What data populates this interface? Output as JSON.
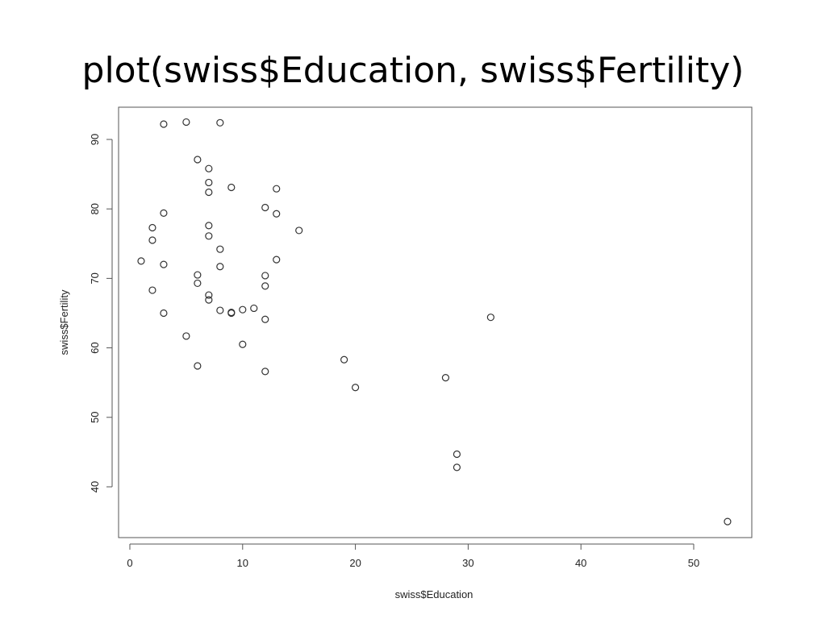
{
  "chart_data": {
    "type": "scatter",
    "title": "plot(swiss$Education, swiss$Fertility)",
    "x_label": "swiss$Education",
    "y_label": "swiss$Fertility",
    "x": [
      12,
      9,
      5,
      7,
      15,
      7,
      7,
      8,
      7,
      13,
      6,
      12,
      7,
      12,
      5,
      2,
      8,
      28,
      20,
      9,
      10,
      3,
      12,
      6,
      1,
      8,
      3,
      10,
      19,
      8,
      2,
      6,
      2,
      6,
      3,
      9,
      3,
      13,
      12,
      11,
      13,
      32,
      7,
      7,
      53,
      29,
      29
    ],
    "values": [
      80.2,
      83.1,
      92.5,
      85.8,
      76.9,
      76.1,
      83.8,
      92.4,
      82.4,
      82.9,
      87.1,
      64.1,
      66.9,
      68.9,
      61.7,
      68.3,
      71.7,
      55.7,
      54.3,
      65.1,
      65.5,
      65.0,
      56.6,
      57.4,
      72.5,
      74.2,
      72.0,
      60.5,
      58.3,
      65.4,
      75.5,
      69.3,
      77.3,
      70.5,
      79.4,
      65.0,
      92.2,
      79.3,
      70.4,
      65.7,
      72.7,
      64.4,
      77.6,
      67.6,
      35.0,
      44.7,
      42.8
    ],
    "xlim": [
      -1.0,
      55.15
    ],
    "ylim": [
      32.69,
      94.64
    ],
    "xticks": [
      0,
      10,
      20,
      30,
      40,
      50
    ],
    "yticks": [
      40,
      50,
      60,
      70,
      80,
      90
    ],
    "color": "#333333"
  }
}
